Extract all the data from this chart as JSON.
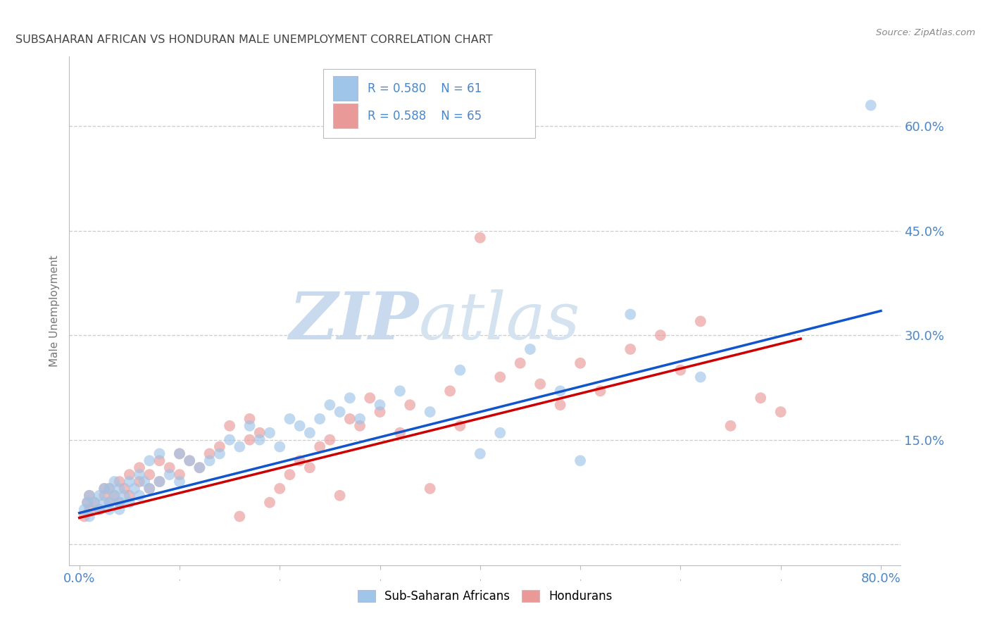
{
  "title": "SUBSAHARAN AFRICAN VS HONDURAN MALE UNEMPLOYMENT CORRELATION CHART",
  "source": "Source: ZipAtlas.com",
  "ylabel": "Male Unemployment",
  "xlim": [
    -0.01,
    0.82
  ],
  "ylim": [
    -0.03,
    0.7
  ],
  "xticks": [
    0.0,
    0.1,
    0.2,
    0.3,
    0.4,
    0.5,
    0.6,
    0.7,
    0.8
  ],
  "xticklabels": [
    "0.0%",
    "",
    "",
    "",
    "",
    "",
    "",
    "",
    "80.0%"
  ],
  "yticks": [
    0.0,
    0.15,
    0.3,
    0.45,
    0.6
  ],
  "yticklabels": [
    "",
    "15.0%",
    "30.0%",
    "45.0%",
    "60.0%"
  ],
  "grid_color": "#cccccc",
  "background_color": "#ffffff",
  "watermark_zip": "ZIP",
  "watermark_atlas": "atlas",
  "legend_blue_r": "R = 0.580",
  "legend_blue_n": "N = 61",
  "legend_pink_r": "R = 0.588",
  "legend_pink_n": "N = 65",
  "blue_color": "#9fc5e8",
  "pink_color": "#ea9999",
  "blue_line_color": "#1155cc",
  "pink_line_color": "#cc0000",
  "tick_label_color": "#4a86c8",
  "title_color": "#444444",
  "blue_scatter_x": [
    0.005,
    0.008,
    0.01,
    0.01,
    0.015,
    0.02,
    0.02,
    0.025,
    0.025,
    0.03,
    0.03,
    0.03,
    0.035,
    0.035,
    0.04,
    0.04,
    0.04,
    0.045,
    0.05,
    0.05,
    0.055,
    0.06,
    0.06,
    0.065,
    0.07,
    0.07,
    0.08,
    0.08,
    0.09,
    0.1,
    0.1,
    0.11,
    0.12,
    0.13,
    0.14,
    0.15,
    0.16,
    0.17,
    0.18,
    0.19,
    0.2,
    0.21,
    0.22,
    0.23,
    0.24,
    0.25,
    0.26,
    0.27,
    0.28,
    0.3,
    0.32,
    0.35,
    0.38,
    0.4,
    0.42,
    0.45,
    0.48,
    0.5,
    0.55,
    0.62,
    0.79
  ],
  "blue_scatter_y": [
    0.05,
    0.06,
    0.04,
    0.07,
    0.06,
    0.05,
    0.07,
    0.06,
    0.08,
    0.05,
    0.06,
    0.08,
    0.07,
    0.09,
    0.05,
    0.06,
    0.08,
    0.07,
    0.06,
    0.09,
    0.08,
    0.07,
    0.1,
    0.09,
    0.08,
    0.12,
    0.09,
    0.13,
    0.1,
    0.09,
    0.13,
    0.12,
    0.11,
    0.12,
    0.13,
    0.15,
    0.14,
    0.17,
    0.15,
    0.16,
    0.14,
    0.18,
    0.17,
    0.16,
    0.18,
    0.2,
    0.19,
    0.21,
    0.18,
    0.2,
    0.22,
    0.19,
    0.25,
    0.13,
    0.16,
    0.28,
    0.22,
    0.12,
    0.33,
    0.24,
    0.63
  ],
  "pink_scatter_x": [
    0.005,
    0.008,
    0.01,
    0.01,
    0.015,
    0.02,
    0.025,
    0.025,
    0.03,
    0.03,
    0.035,
    0.04,
    0.04,
    0.045,
    0.05,
    0.05,
    0.06,
    0.06,
    0.07,
    0.07,
    0.08,
    0.08,
    0.09,
    0.1,
    0.1,
    0.11,
    0.12,
    0.13,
    0.14,
    0.15,
    0.16,
    0.17,
    0.17,
    0.18,
    0.19,
    0.2,
    0.21,
    0.22,
    0.23,
    0.24,
    0.25,
    0.26,
    0.27,
    0.28,
    0.29,
    0.3,
    0.32,
    0.33,
    0.35,
    0.37,
    0.38,
    0.4,
    0.42,
    0.44,
    0.46,
    0.48,
    0.5,
    0.52,
    0.55,
    0.58,
    0.6,
    0.62,
    0.65,
    0.68,
    0.7
  ],
  "pink_scatter_y": [
    0.04,
    0.06,
    0.05,
    0.07,
    0.06,
    0.05,
    0.07,
    0.08,
    0.06,
    0.08,
    0.07,
    0.06,
    0.09,
    0.08,
    0.07,
    0.1,
    0.09,
    0.11,
    0.08,
    0.1,
    0.09,
    0.12,
    0.11,
    0.1,
    0.13,
    0.12,
    0.11,
    0.13,
    0.14,
    0.17,
    0.04,
    0.15,
    0.18,
    0.16,
    0.06,
    0.08,
    0.1,
    0.12,
    0.11,
    0.14,
    0.15,
    0.07,
    0.18,
    0.17,
    0.21,
    0.19,
    0.16,
    0.2,
    0.08,
    0.22,
    0.17,
    0.44,
    0.24,
    0.26,
    0.23,
    0.2,
    0.26,
    0.22,
    0.28,
    0.3,
    0.25,
    0.32,
    0.17,
    0.21,
    0.19
  ],
  "blue_line_x0": 0.0,
  "blue_line_x1": 0.8,
  "blue_line_y0": 0.045,
  "blue_line_y1": 0.335,
  "pink_line_x0": 0.0,
  "pink_line_x1": 0.72,
  "pink_line_y0": 0.038,
  "pink_line_y1": 0.295
}
